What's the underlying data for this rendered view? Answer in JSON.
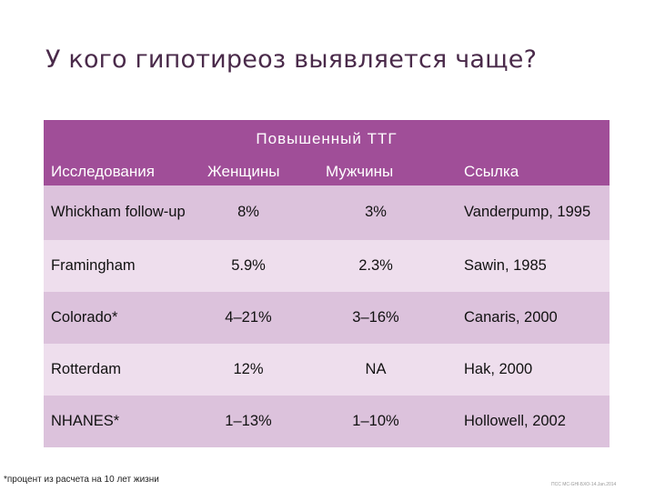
{
  "title": "У кого  гипотиреоз выявляется чаще?",
  "table": {
    "group_header": "Повышенный ТТГ",
    "columns": [
      "Исследования",
      "Женщины",
      "Мужчины",
      "Ссылка"
    ],
    "rows": [
      {
        "study": "Whickham follow-up",
        "women": "8%",
        "men": "3%",
        "reference": "Vanderpump, 1995"
      },
      {
        "study": "Framingham",
        "women": "5.9%",
        "men": "2.3%",
        "reference": "Sawin, 1985"
      },
      {
        "study": "Colorado*",
        "women": "4–21%",
        "men": "3–16%",
        "reference": "Canaris, 2000"
      },
      {
        "study": "Rotterdam",
        "women": "12%",
        "men": "NA",
        "reference": "Hak, 2000"
      },
      {
        "study": "NHANES*",
        "women": "1–13%",
        "men": "1–10%",
        "reference": "Hollowell, 2002"
      }
    ]
  },
  "footnote": "*процент из расчета на 10 лет жизни",
  "corner_note": "ПСС МС-GНl-БХО-14.Jan.2014",
  "colors": {
    "header": "#a04e98",
    "row_dark": "#dcc2dc",
    "row_light": "#eedeed"
  }
}
